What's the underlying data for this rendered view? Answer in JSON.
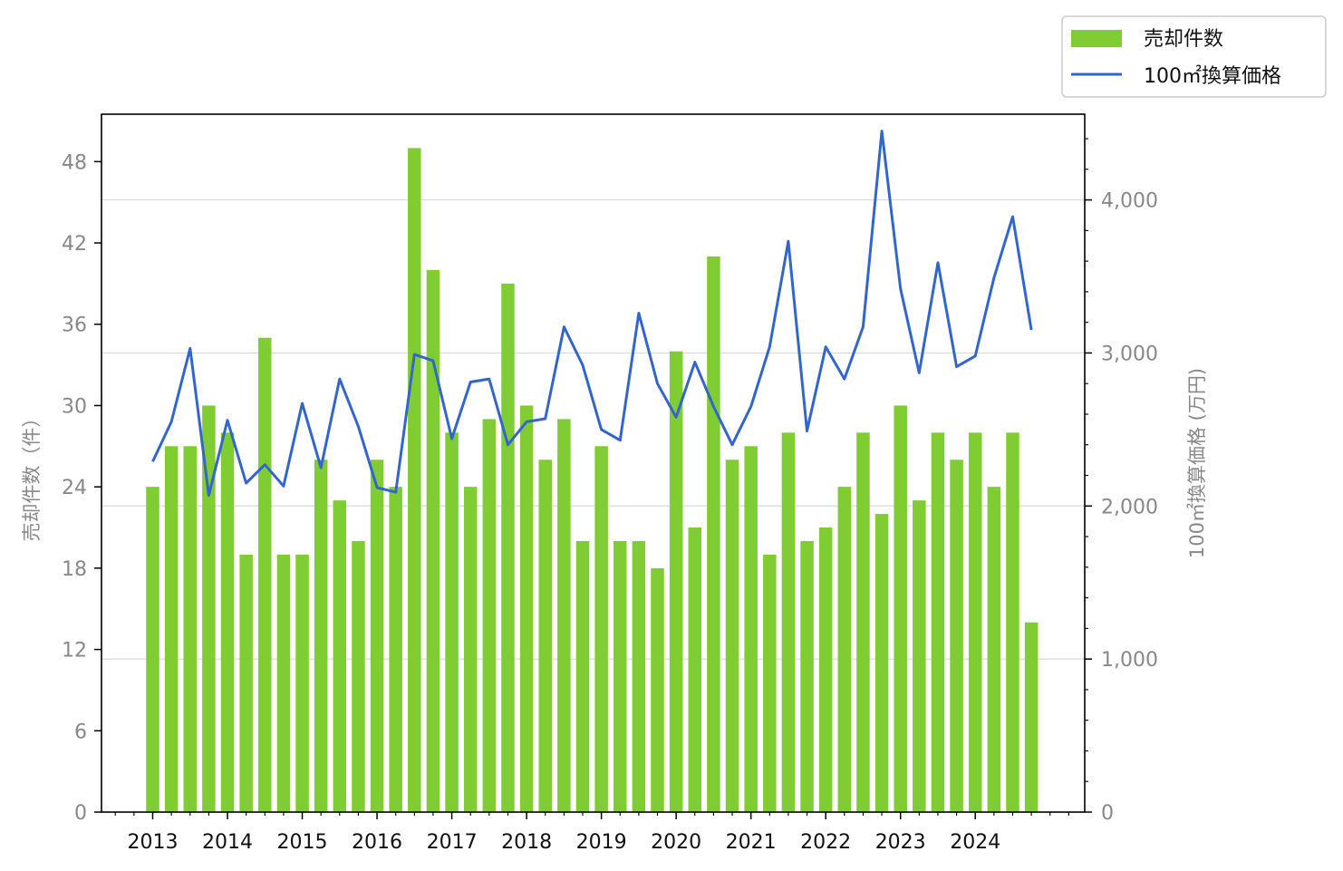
{
  "chart_data": {
    "type": "bar",
    "x_start": "2013 Q1",
    "x_tick_labels": [
      "2013",
      "2014",
      "2015",
      "2016",
      "2017",
      "2018",
      "2019",
      "2020",
      "2021",
      "2022",
      "2023",
      "2024"
    ],
    "series": [
      {
        "name": "売却件数",
        "type": "bar",
        "axis": "left",
        "color": "#7fcc33",
        "values": [
          24,
          27,
          27,
          30,
          28,
          19,
          35,
          19,
          19,
          26,
          23,
          20,
          26,
          24,
          49,
          40,
          28,
          24,
          29,
          39,
          30,
          26,
          29,
          20,
          27,
          20,
          20,
          18,
          34,
          21,
          41,
          26,
          27,
          19,
          28,
          20,
          21,
          24,
          28,
          22,
          30,
          23,
          28,
          26,
          28,
          24,
          28,
          14
        ]
      },
      {
        "name": "100㎡換算価格",
        "type": "line",
        "axis": "right",
        "color": "#3366cc",
        "values": [
          2290,
          2550,
          3030,
          2070,
          2560,
          2150,
          2270,
          2130,
          2670,
          2250,
          2830,
          2520,
          2120,
          2090,
          2990,
          2950,
          2440,
          2810,
          2830,
          2400,
          2550,
          2570,
          3170,
          2920,
          2500,
          2430,
          3260,
          2800,
          2580,
          2940,
          2650,
          2400,
          2650,
          3040,
          3730,
          2490,
          3040,
          2830,
          3170,
          4450,
          3420,
          2870,
          3590,
          2910,
          2980,
          3490,
          3890,
          3150
        ]
      }
    ],
    "y_left": {
      "label": "売却件数（件）",
      "ticks": [
        "0",
        "6",
        "12",
        "18",
        "24",
        "30",
        "36",
        "42",
        "48"
      ],
      "range": [
        0,
        51.5
      ]
    },
    "y_right": {
      "label": "100㎡換算価格 (万円)",
      "ticks": [
        "0",
        "1,000",
        "2,000",
        "3,000",
        "4,000"
      ],
      "range": [
        0,
        4560
      ]
    },
    "grid": "horizontal (right axis major ticks)",
    "legend_position": "top-right, outside plot"
  }
}
